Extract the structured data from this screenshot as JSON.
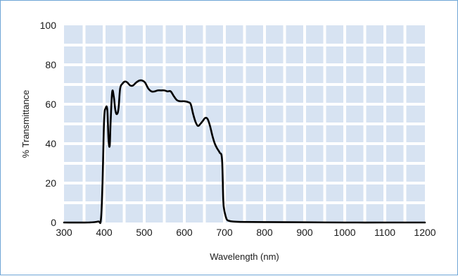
{
  "chart_data": {
    "type": "line",
    "title": "",
    "xlabel": "Wavelength (nm)",
    "ylabel": "% Transmittance",
    "xlim": [
      300,
      1200
    ],
    "ylim": [
      0,
      100
    ],
    "xticks": [
      "300",
      "400",
      "500",
      "600",
      "700",
      "800",
      "900",
      "1000",
      "1100",
      "1200"
    ],
    "yticks": [
      "0",
      "20",
      "40",
      "60",
      "80",
      "100"
    ],
    "grid": true,
    "plot_background": "#d7e3f2",
    "grid_color": "#ffffff",
    "line_color": "#000000",
    "frame_color": "#6fa6d6",
    "series": [
      {
        "x": [
          300,
          360,
          385,
          392,
          396,
          400,
          404,
          408,
          411,
          414,
          416,
          420,
          424,
          428,
          432,
          436,
          440,
          446,
          452,
          458,
          465,
          472,
          480,
          488,
          495,
          502,
          510,
          518,
          526,
          534,
          542,
          550,
          558,
          566,
          574,
          582,
          590,
          600,
          610,
          616,
          622,
          628,
          634,
          640,
          646,
          652,
          658,
          664,
          670,
          676,
          682,
          688,
          694,
          697,
          699,
          702,
          706,
          712,
          720,
          740,
          800,
          900,
          1000,
          1100,
          1200
        ],
        "y": [
          0,
          0,
          0.5,
          1.5,
          20,
          52,
          58,
          57,
          42,
          39,
          50,
          66,
          64,
          57,
          55,
          58,
          68,
          70.5,
          71.5,
          71,
          69.5,
          69.5,
          71,
          72,
          72,
          71,
          68,
          66.5,
          66.5,
          67,
          67,
          67,
          66.5,
          66.5,
          64,
          62,
          61.5,
          61.5,
          61,
          60,
          55,
          51,
          49,
          50,
          51.5,
          53,
          52.5,
          49,
          44,
          40,
          37.5,
          35.5,
          32,
          12,
          7,
          4,
          1.5,
          0.8,
          0.5,
          0.3,
          0.2,
          0.1,
          0,
          0,
          0
        ]
      }
    ]
  }
}
